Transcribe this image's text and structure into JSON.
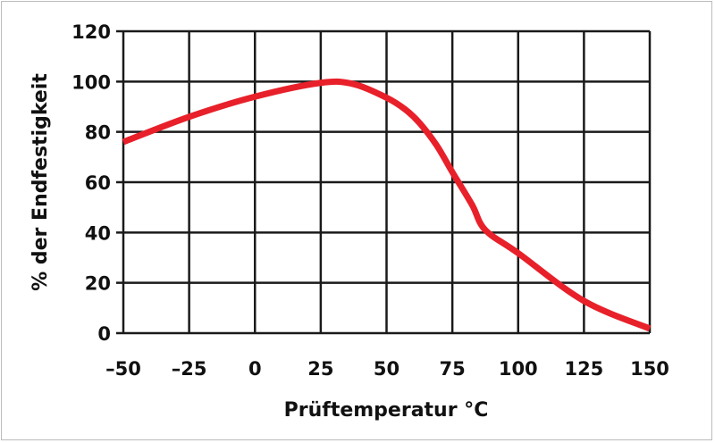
{
  "chart_data": {
    "type": "line",
    "title": "",
    "xlabel": "Prüftemperatur °C",
    "ylabel": "% der Endfestigkeit",
    "xlim": [
      -50,
      150
    ],
    "ylim": [
      0,
      120
    ],
    "xticks": [
      "–50",
      "–25",
      "0",
      "25",
      "50",
      "75",
      "100",
      "125",
      "150"
    ],
    "xtick_values": [
      -50,
      -25,
      0,
      25,
      50,
      75,
      100,
      125,
      150
    ],
    "yticks": [
      "0",
      "20",
      "40",
      "60",
      "80",
      "100",
      "120"
    ],
    "ytick_values": [
      0,
      20,
      40,
      60,
      80,
      100,
      120
    ],
    "grid": true,
    "series": [
      {
        "color": "#e8202a",
        "x": [
          -50,
          -25,
          0,
          25,
          37.5,
          50,
          57,
          62.5,
          69,
          75,
          82.5,
          87.5,
          100,
          125,
          150
        ],
        "y": [
          76,
          86,
          94,
          99.5,
          99,
          93.6,
          89,
          83.6,
          74.7,
          64,
          51,
          41,
          31.8,
          12.8,
          1.8
        ]
      }
    ]
  }
}
